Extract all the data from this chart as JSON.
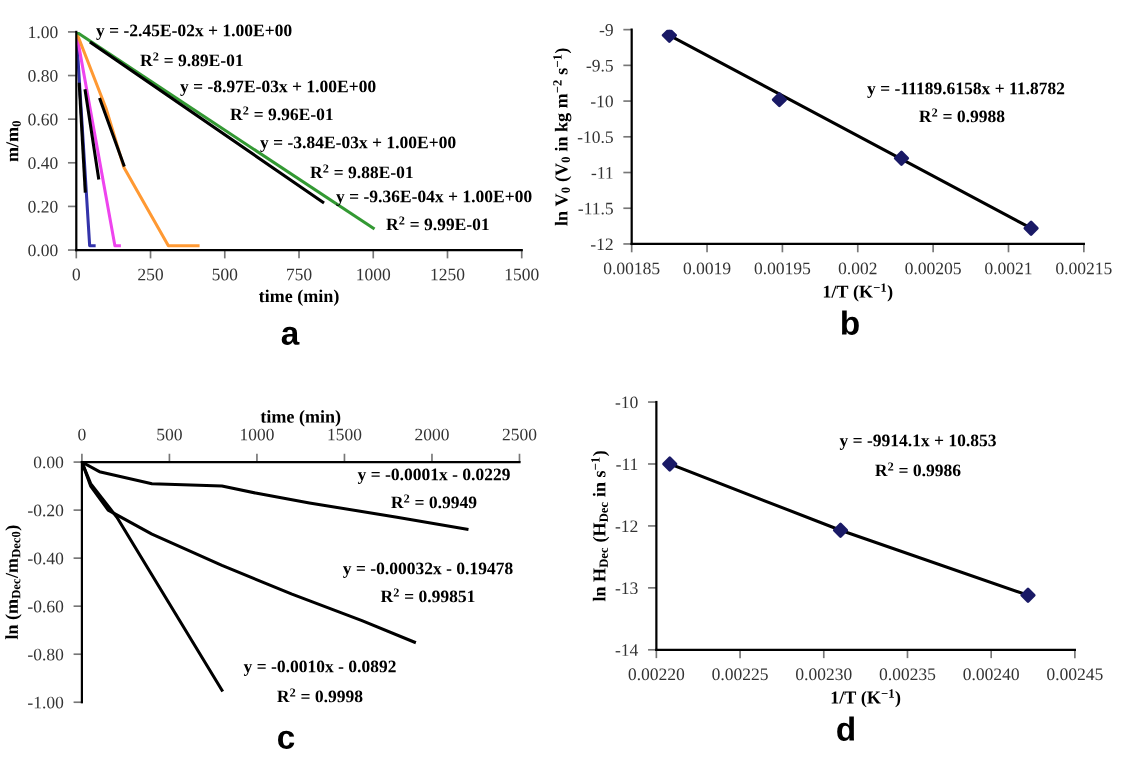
{
  "chart_data": [
    {
      "type": "line",
      "xlabel": "time (min)",
      "ylabel": "m/m$_{0}$",
      "xlim": [
        0,
        1500
      ],
      "xticks": [
        0,
        250,
        500,
        750,
        1000,
        1250,
        1500
      ],
      "ylim": [
        0,
        1
      ],
      "yticks": [
        {
          "value": 0,
          "label": "0.00"
        },
        {
          "value": 0.2,
          "label": "0.20"
        },
        {
          "value": 0.4,
          "label": "0.40"
        },
        {
          "value": 0.6,
          "label": "0.60"
        },
        {
          "value": 0.8,
          "label": "0.80"
        },
        {
          "value": 1,
          "label": "1.00"
        }
      ],
      "marker": "none",
      "grid": false,
      "legend": false,
      "series": [
        {
          "color": "#3333aa",
          "x": [
            0,
            45,
            60
          ],
          "values": [
            1.0,
            0.02,
            0.02
          ]
        },
        {
          "color": "#ee44ee",
          "x": [
            0,
            130,
            145
          ],
          "values": [
            1.0,
            0.02,
            0.02
          ]
        },
        {
          "color": "#ff9933",
          "x": [
            0,
            100,
            160,
            310,
            410
          ],
          "values": [
            1.0,
            0.65,
            0.38,
            0.02,
            0.02
          ]
        },
        {
          "color": "#339933",
          "x": [
            0,
            1000
          ],
          "values": [
            1.0,
            0.1
          ]
        },
        {
          "color": "#000000",
          "x": [
            10,
            30
          ],
          "values": [
            0.76,
            0.27
          ]
        },
        {
          "color": "#000000",
          "x": [
            30,
            75
          ],
          "values": [
            0.73,
            0.33
          ]
        },
        {
          "color": "#000000",
          "x": [
            80,
            160
          ],
          "values": [
            0.69,
            0.39
          ]
        },
        {
          "color": "#000000",
          "x": [
            50,
            830
          ],
          "values": [
            0.95,
            0.22
          ]
        }
      ],
      "annotations": [
        "y = -2.45E-02x + 1.00E+00",
        "R$^{2}$ = 9.89E-01",
        "y = -8.97E-03x + 1.00E+00",
        "R$^{2}$ = 9.96E-01",
        "y = -3.84E-03x + 1.00E+00",
        "R$^{2}$ = 9.88E-01",
        "y = -9.36E-04x + 1.00E+00",
        "R$^{2}$ = 9.99E-01",
        "a"
      ]
    },
    {
      "type": "scatter",
      "xlabel": "1/T (K$^{−1}$)",
      "ylabel": "ln V$_{0}$ (V$_{0}$ in kg m$^{−2}$ s$^{−1}$)",
      "xlim": [
        0.00185,
        0.00215
      ],
      "xticks": [
        0.00185,
        0.0019,
        0.00195,
        0.002,
        0.00205,
        0.0021,
        0.00215
      ],
      "ylim": [
        -12,
        -9
      ],
      "yticks": [
        -12,
        -11.5,
        -11,
        -10.5,
        -10,
        -9.5,
        -9
      ],
      "grid": false,
      "legend": false,
      "series": [
        {
          "type": "line",
          "marker": "none",
          "color": "#000000",
          "x": [
            0.001875,
            0.002115
          ],
          "values": [
            -9.08,
            -11.78
          ]
        },
        {
          "type": "scatter",
          "marker": "diamond",
          "color": "#1a1a66",
          "x": [
            0.001875,
            0.001948,
            0.002029,
            0.002115
          ],
          "values": [
            -9.08,
            -9.98,
            -10.8,
            -11.78
          ]
        }
      ],
      "annotations": [
        "y = -11189.6158x + 11.8782",
        "R$^{2}$ = 0.9988",
        "b"
      ]
    },
    {
      "type": "line",
      "xlabel": "time (min)",
      "ylabel": "ln (m$_{Dec}$/m$_{Dec0}$)",
      "xlim": [
        0,
        2500
      ],
      "xticks": [
        0,
        500,
        1000,
        1500,
        2000,
        2500
      ],
      "ylim": [
        -1,
        0
      ],
      "yticks": [
        {
          "value": -1,
          "label": "-1.00"
        },
        {
          "value": -0.8,
          "label": "-0.80"
        },
        {
          "value": -0.6,
          "label": "-0.60"
        },
        {
          "value": -0.4,
          "label": "-0.40"
        },
        {
          "value": -0.2,
          "label": "-0.20"
        },
        {
          "value": 0,
          "label": "0.00"
        }
      ],
      "marker": "none",
      "grid": false,
      "legend": false,
      "series": [
        {
          "color": "#000000",
          "x": [
            0,
            100,
            400,
            800,
            1000,
            1300,
            1800,
            2200
          ],
          "values": [
            0,
            -0.04,
            -0.09,
            -0.1,
            -0.13,
            -0.17,
            -0.23,
            -0.28
          ]
        },
        {
          "color": "#000000",
          "x": [
            0,
            50,
            150,
            400,
            800,
            1200,
            1600,
            1900
          ],
          "values": [
            0,
            -0.1,
            -0.2,
            -0.3,
            -0.43,
            -0.55,
            -0.66,
            -0.75
          ]
        },
        {
          "color": "#000000",
          "x": [
            0,
            50,
            200,
            500,
            800
          ],
          "values": [
            0,
            -0.09,
            -0.23,
            -0.59,
            -0.95
          ]
        }
      ],
      "annotations": [
        "y = -0.0001x - 0.0229",
        "R$^{2}$ = 0.9949",
        "y = -0.00032x - 0.19478",
        "R$^{2}$ = 0.99851",
        "y = -0.0010x - 0.0892",
        "R$^{2}$ = 0.9998",
        "c"
      ]
    },
    {
      "type": "scatter",
      "xlabel": "1/T (K$^{−1}$)",
      "ylabel": "ln H$_{Dec}$ (H$_{Dec}$ in s$^{−1}$)",
      "xlim": [
        0.0022,
        0.00245
      ],
      "xticks": [
        {
          "value": 0.0022,
          "label": "0.00220"
        },
        {
          "value": 0.00225,
          "label": "0.00225"
        },
        {
          "value": 0.0023,
          "label": "0.00230"
        },
        {
          "value": 0.00235,
          "label": "0.00235"
        },
        {
          "value": 0.0024,
          "label": "0.00240"
        },
        {
          "value": 0.00245,
          "label": "0.00245"
        }
      ],
      "ylim": [
        -14,
        -10
      ],
      "yticks": [
        -14,
        -13,
        -12,
        -11,
        -10
      ],
      "grid": false,
      "legend": false,
      "series": [
        {
          "type": "line",
          "marker": "none",
          "color": "#000000",
          "x": [
            0.002208,
            0.00231,
            0.002422
          ],
          "values": [
            -11.0,
            -12.07,
            -13.12
          ]
        },
        {
          "type": "scatter",
          "marker": "diamond",
          "color": "#1a1a66",
          "x": [
            0.002208,
            0.00231,
            0.002422
          ],
          "values": [
            -11.0,
            -12.07,
            -13.12
          ]
        }
      ],
      "annotations": [
        "y = -9914.1x + 10.853",
        "R$^{2}$ = 0.9986",
        "d"
      ]
    }
  ]
}
